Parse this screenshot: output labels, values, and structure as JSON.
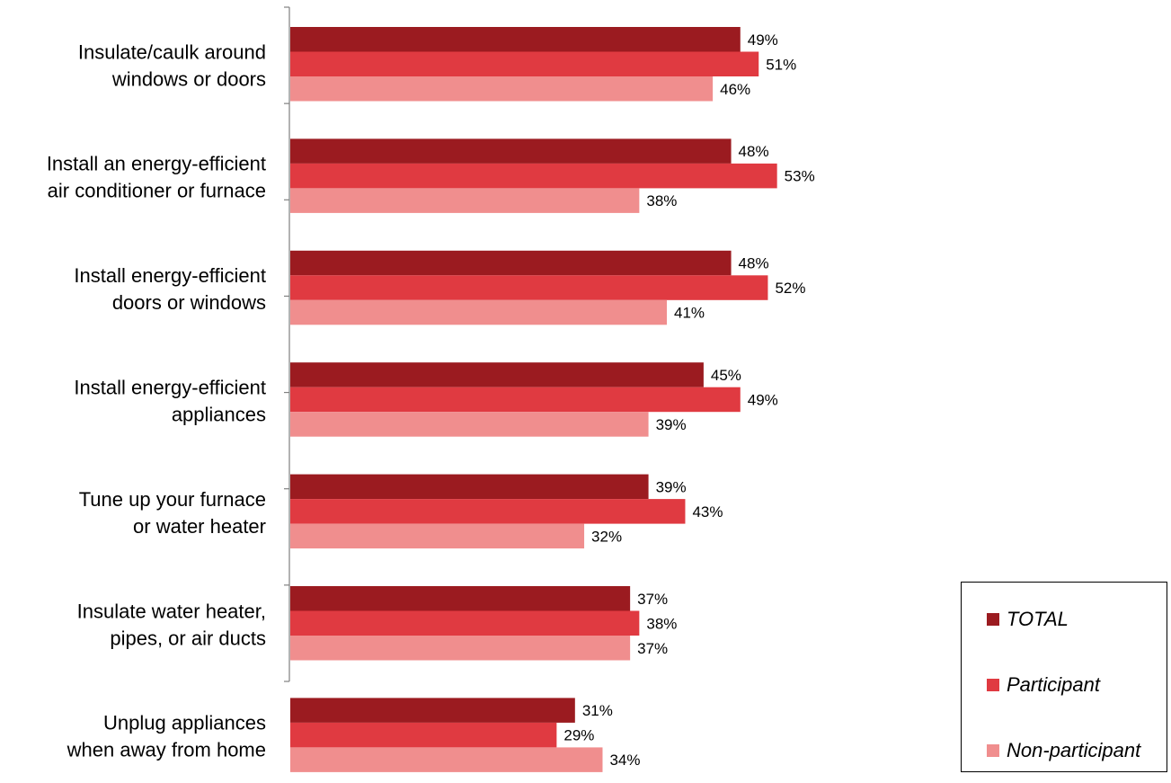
{
  "chart_data": {
    "type": "bar",
    "orientation": "horizontal",
    "categories": [
      [
        "Insulate/caulk around",
        "windows or doors"
      ],
      [
        "Install an energy-efficient",
        "air conditioner or furnace"
      ],
      [
        "Install energy-efficient",
        "doors or windows"
      ],
      [
        "Install energy-efficient",
        "appliances"
      ],
      [
        "Tune up your furnace",
        "or water heater"
      ],
      [
        "Insulate water heater,",
        "pipes, or air ducts"
      ],
      [
        "Unplug appliances",
        "when away from home"
      ]
    ],
    "series": [
      {
        "name": "TOTAL",
        "color": "#9b1b20",
        "values": [
          49,
          48,
          48,
          45,
          39,
          37,
          31
        ]
      },
      {
        "name": "Participant",
        "color": "#e03a41",
        "values": [
          51,
          53,
          52,
          49,
          43,
          38,
          29
        ]
      },
      {
        "name": "Non-participant",
        "color": "#f08e8e",
        "values": [
          46,
          38,
          41,
          39,
          32,
          37,
          34
        ]
      }
    ],
    "value_suffix": "%",
    "xlim": [
      0,
      100
    ],
    "grid": false,
    "legend_position": "bottom-right"
  }
}
